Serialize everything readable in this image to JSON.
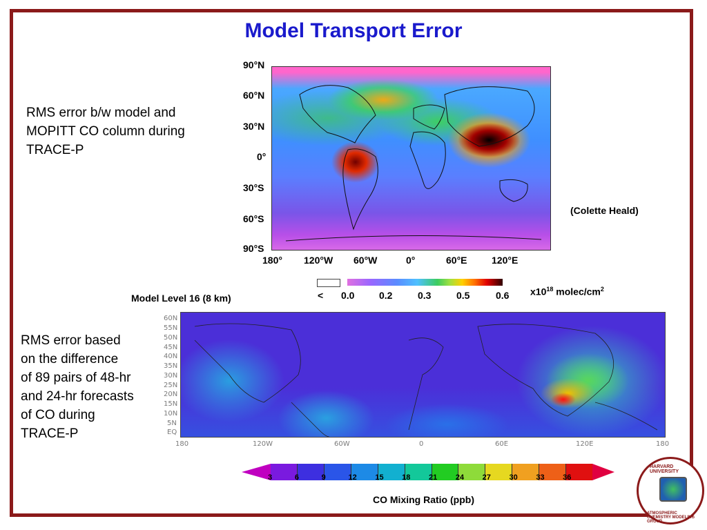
{
  "slide": {
    "title": "Model Transport Error",
    "desc1_lines": [
      "RMS error b/w model and",
      "MOPITT CO column during",
      "TRACE-P"
    ],
    "desc2_lines": [
      "RMS error based",
      "on the difference",
      "of 89 pairs of 48-hr",
      "and 24-hr forecasts",
      "of CO during",
      "TRACE-P"
    ],
    "credit": "(Colette Heald)",
    "model_level_label": "Model Level 16 (8 km)",
    "map1_units": "x10",
    "map1_units_exp": "18",
    "map1_units_rest": " molec/cm",
    "map1_units_exp2": "2",
    "cbar2_label": "CO Mixing Ratio (ppb)"
  },
  "map1": {
    "lat_labels": [
      "90°N",
      "60°N",
      "30°N",
      "0°",
      "30°S",
      "60°S",
      "90°S"
    ],
    "lon_labels": [
      "180°",
      "120°W",
      "60°W",
      "0°",
      "60°E",
      "120°E"
    ],
    "colorbar_ticks": [
      "<",
      "0.0",
      "0.2",
      "0.3",
      "0.5",
      "0.6"
    ]
  },
  "map2": {
    "lat_labels": [
      "60N",
      "55N",
      "50N",
      "45N",
      "40N",
      "35N",
      "30N",
      "25N",
      "20N",
      "15N",
      "10N",
      "5N",
      "EQ"
    ],
    "lon_labels": [
      "180",
      "120W",
      "60W",
      "0",
      "60E",
      "120E",
      "180"
    ],
    "colorbar_ticks": [
      "3",
      "6",
      "9",
      "12",
      "15",
      "18",
      "21",
      "24",
      "27",
      "30",
      "33",
      "36"
    ],
    "colorbar_colors": [
      "#7a1adf",
      "#3d2fe0",
      "#2a55e8",
      "#1d8ae6",
      "#12b0d0",
      "#13c89a",
      "#22cc22",
      "#8edb3a",
      "#e6d820",
      "#f0a020",
      "#ee6018",
      "#e01010"
    ]
  },
  "logo": {
    "top_text": "HARVARD UNIVERSITY",
    "bottom_text": "ATMOSPHERIC CHEMISTRY MODELING GROUP"
  }
}
